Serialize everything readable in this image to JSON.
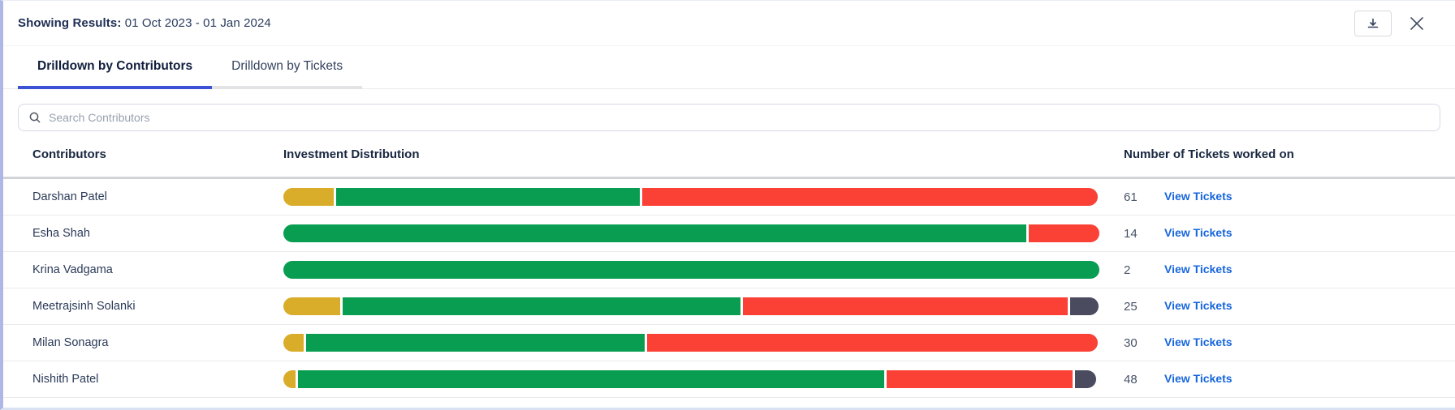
{
  "header": {
    "label": "Showing Results:",
    "date_range": "01 Oct 2023 - 01 Jan 2024"
  },
  "tabs": [
    {
      "label": "Drilldown by Contributors",
      "active": true
    },
    {
      "label": "Drilldown by Tickets",
      "active": false
    }
  ],
  "search": {
    "placeholder": "Search Contributors"
  },
  "table": {
    "columns": [
      "Contributors",
      "Investment Distribution",
      "Number of Tickets worked on"
    ],
    "link_label": "View Tickets",
    "rows": [
      {
        "name": "Darshan Patel",
        "tickets": "61",
        "segments": [
          {
            "color": "yellow",
            "pct": 6.2
          },
          {
            "color": "green",
            "pct": 37.2
          },
          {
            "color": "red",
            "pct": 55.8
          }
        ]
      },
      {
        "name": "Esha Shah",
        "tickets": "14",
        "segments": [
          {
            "color": "green",
            "pct": 91.3
          },
          {
            "color": "red",
            "pct": 8.7
          }
        ]
      },
      {
        "name": "Krina Vadgama",
        "tickets": "2",
        "segments": [
          {
            "color": "green",
            "pct": 100
          }
        ]
      },
      {
        "name": "Meetrajsinh Solanki",
        "tickets": "25",
        "segments": [
          {
            "color": "yellow",
            "pct": 7.0
          },
          {
            "color": "green",
            "pct": 48.7
          },
          {
            "color": "red",
            "pct": 39.8
          },
          {
            "color": "navy",
            "pct": 3.5
          }
        ]
      },
      {
        "name": "Milan Sonagra",
        "tickets": "30",
        "segments": [
          {
            "color": "yellow",
            "pct": 2.5
          },
          {
            "color": "green",
            "pct": 41.5
          },
          {
            "color": "red",
            "pct": 55.2
          }
        ]
      },
      {
        "name": "Nishith Patel",
        "tickets": "48",
        "segments": [
          {
            "color": "yellow",
            "pct": 1.5
          },
          {
            "color": "green",
            "pct": 71.8
          },
          {
            "color": "red",
            "pct": 22.8
          },
          {
            "color": "navy",
            "pct": 2.6
          }
        ]
      }
    ]
  },
  "colors": {
    "yellow": "#d9ac2a",
    "green": "#089d50",
    "red": "#fb4136",
    "navy": "#4a4b5f",
    "accent_blue": "#3d51d4",
    "link_blue": "#1766dc"
  },
  "icons": {
    "download": "download-icon",
    "close": "close-icon",
    "search": "search-icon"
  }
}
